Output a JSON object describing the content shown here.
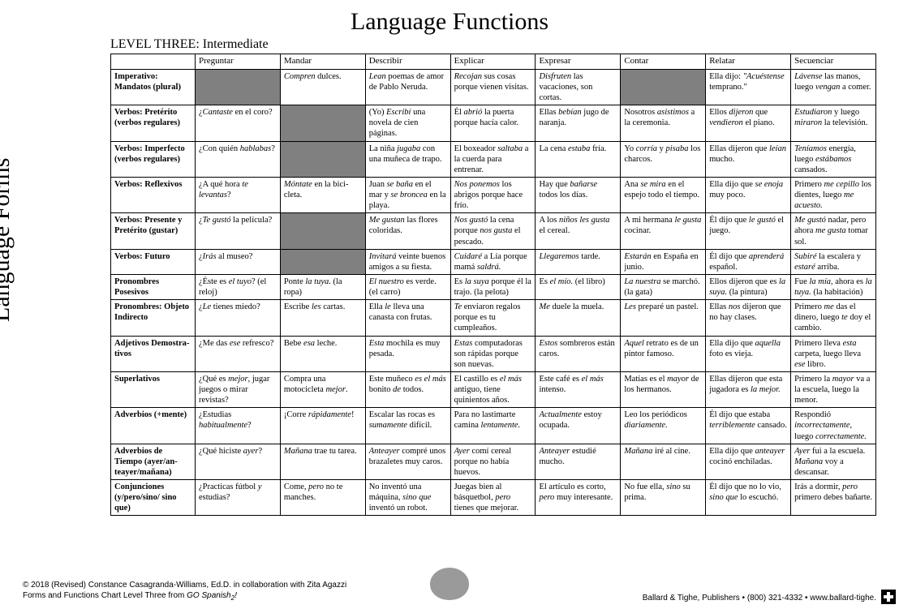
{
  "title": "Language Functions",
  "side_title": "Language Forms",
  "subtitle": "LEVEL THREE: Intermediate",
  "columns": [
    "Preguntar",
    "Mandar",
    "Describir",
    "Explicar",
    "Expresar",
    "Contar",
    "Relatar",
    "Secuenciar"
  ],
  "rows": [
    {
      "label": "Imperativo: Mandatos (plural)",
      "cells": [
        null,
        "<i>Compren</i> dulces.",
        "<i>Lean</i> poemas de amor de Pablo Neruda.",
        "<i>Recojan</i> sus cosas porque vienen visitas.",
        "<i>Disfruten</i> las vacaciones, son cortas.",
        null,
        "Ella dijo: <i>\"Acuéstense</i> temprano.\"",
        "<i>Lávense</i> las manos, luego <i>vengan</i> a comer."
      ]
    },
    {
      "label": "Verbos: Pretérito (verbos regulares)",
      "cells": [
        "¿<i>Cantaste</i> en el coro?",
        null,
        "(Yo) <i>Escribí</i> una novela de cien páginas.",
        "Él <i>abrió</i> la puerta porque hacía calor.",
        "Ellas <i>bebían</i> jugo de naranja.",
        "Nosotros <i>asistimos</i> a la ceremonia.",
        "Ellos <i>dijeron</i> que <i>vendieron</i> el piano.",
        "<i>Estudiaron</i>  y luego <i>miraron</i> la televisión."
      ]
    },
    {
      "label": "Verbos: Imperfecto (verbos regulares)",
      "cells": [
        "¿Con quién <i>hablabas</i>?",
        null,
        "La niña <i>jugaba</i> con una muñeca de trapo.",
        "El boxeador <i>saltaba</i> a la cuerda para entrenar.",
        "La cena <i>estaba</i> fría.",
        "Yo <i>corría</i> y <i>pisaba</i> los charcos.",
        "Ellas dijeron que <i>leían</i> mucho.",
        "<i>Teníamos</i> energía, luego <i>estábamos</i> cansados."
      ]
    },
    {
      "label": "Verbos: Reflexivos",
      "cells": [
        "¿A qué hora <i>te levantas</i>?",
        "<i>Móntate</i> en la bici­cleta.",
        "Juan <i>se baña</i> en el mar y <i>se broncea</i> en la playa.",
        "<i>Nos ponemos</i> los abrigos porque hace frío.",
        "Hay que <i>bañarse</i> todos los días.",
        "Ana <i>se mira</i> en el espejo todo el tiempo.",
        "Ella dijo que <i>se enoja</i> muy poco.",
        "Primero <i>me cepillo</i> los dientes, luego <i>me acuesto.</i>"
      ]
    },
    {
      "label": "Verbos: Presente y Pretérito (gustar)",
      "cells": [
        "¿<i>Te gustó</i> la película?",
        null,
        "<i>Me gustan</i> las flores coloridas.",
        "<i>Nos gustó</i> la cena porque <i>nos gusta</i> el pescado.",
        "A los <i>niños les gusta</i> el cereal.",
        "A mi hermana <i>le gusta</i> cocinar.",
        "Él dijo que <i>le gustó</i> el juego.",
        "<i>Me gustó</i> nadar, pero ahora <i>me gusta</i> tomar sol."
      ]
    },
    {
      "label": "Verbos: Futuro",
      "cells": [
        "¿<i>Irás</i> al museo?",
        null,
        "<i>Invitará</i> veinte buenos amigos a su fiesta.",
        "<i>Cuidaré</i> a Lía porque mamá <i>saldrá.</i>",
        "<i>Llegaremos</i> tarde.",
        "<i>Estarán</i> en España en junio.",
        "Él dijo que <i>aprenderá</i> español.",
        "<i>Subiré</i> la escalera y <i>estaré</i> arriba."
      ]
    },
    {
      "label": "Pronombres Posesivos",
      "cells": [
        "¿Éste es <i>el tuyo</i>? (el reloj)",
        "Ponte <i>la tuya.</i> (la ropa)",
        "<i>El nuestro</i> es verde. (el carro)",
        "Es <i>la suya</i> porque él la trajo. (la pelota)",
        "Es <i>el mío.</i> (el libro)",
        "<i>La nuestra</i> se marchó. (la gata)",
        "Ellos dijeron que es <i>la suya.</i> (la pintura)",
        "Fue <i>la mía</i>, ahora es <i>la tuya.</i> (la habitación)"
      ]
    },
    {
      "label": "Pronombres: Objeto Indirecto",
      "cells": [
        "¿<i>Le</i> tienes miedo?",
        "Escribe <i>les</i> cartas.",
        "Ella <i>le</i> lleva una canasta con frutas.",
        "<i>Te</i> enviaron regalos porque es tu cumpleaños.",
        "<i>Me</i> duele la muela.",
        "<i>Les</i> preparé un pastel.",
        "Ellas <i>nos</i> dijeron que no hay clases.",
        "Primero <i>me</i> das el dinero, luego <i>te</i> doy el cambio."
      ]
    },
    {
      "label": "Adjetivos Demostra­tivos",
      "cells": [
        "¿Me das <i>ese</i> refresco?",
        "Bebe <i>esa</i> leche.",
        "<i>Esta</i> mochila es muy pesada.",
        "<i>Estas</i> computadoras son rápidas porque son nuevas.",
        "<i>Estos</i> sombreros están caros.",
        "<i>Aquel</i> retrato es de un pintor famoso.",
        "Ella dijo que <i>aquella</i> foto es vieja.",
        "Primero lleva <i>esta</i> carpeta, luego lleva <i>ese</i> libro."
      ]
    },
    {
      "label": "Superlativos",
      "cells": [
        "¿Qué es <i>mejor</i>, jugar juegos o mirar revistas?",
        "Compra una motocicleta <i>mejor</i>.",
        "Este muñeco <i>es el más</i> bonito <i>de</i> todos.",
        "El castillo es <i>el más</i> antiguo, tiene quinientos años.",
        "Este café es <i>el más</i> intenso.",
        "Matías es el <i>mayor</i> de los hermanos.",
        "Ellas dijeron que esta jugadora es <i>la mejor.</i>",
        "Primero la <i>mayor</i> va a la escuela, luego la menor."
      ]
    },
    {
      "label": "Adverbios (+mente)",
      "cells": [
        "¿Estudias <i>habitualmente</i>?",
        "¡Corre <i>rápidamente</i>!",
        "Escalar las rocas es <i>sumamente</i> difícil.",
        "Para no lastimarte camina <i>lentamente.</i>",
        "<i>Actualmente</i> estoy ocupada.",
        "Leo los periódicos <i>diariamente.</i>",
        "Él dijo que estaba <i>terriblemente</i> cansado.",
        "Respondió <i>incorrectamente</i>, luego <i>correctamente.</i>"
      ]
    },
    {
      "label": "Adverbios de Tiempo (ayer/an­teayer/mañana)",
      "cells": [
        "¿Qué hiciste <i>ayer</i>?",
        "<i>Mañana</i> trae tu tarea.",
        "<i>Anteayer</i> compré unos brazaletes muy caros.",
        "<i>Ayer</i> comí cereal porque no había huevos.",
        "<i>Anteayer</i> estudié mucho.",
        "<i>Mañana</i> iré al cine.",
        "Ella dijo que <i>anteayer</i> cocinó enchiladas.",
        "<i>Ayer</i> fui a la escuela. <i>Mañana</i> voy a descansar."
      ]
    },
    {
      "label": "Conjunciones (y/pero/sino/ sino que)",
      "cells": [
        "¿Practicas fútbol <i>y</i> estudias?",
        "Come, <i>pero</i> no te manches.",
        "No inventó una máquina, <i>sino que</i> inventó un robot.",
        "Juegas bien al básquetbol, <i>pero</i> tienes que mejorar.",
        "El artículo es corto, <i>pero</i> muy interesante.",
        "No fue ella, <i>sino</i> su prima.",
        "Él dijo que no lo vio, <i>sino que</i> lo escuchó.",
        "Irás a dormir, <i>pero</i> primero debes bañarte."
      ]
    }
  ],
  "footer_left_1": "© 2018 (Revised) Constance Casagranda-Williams, Ed.D. in collaboration with Zita Agazzi",
  "footer_left_2_a": "Forms and Functions Chart Level Three from ",
  "footer_left_2_b": "GO Spanish",
  "footer_left_2_c": "2",
  "footer_left_2_d": "!",
  "footer_right": "Ballard & Tighe, Publishers • (800) 321-4332 • www.ballard-tighe."
}
